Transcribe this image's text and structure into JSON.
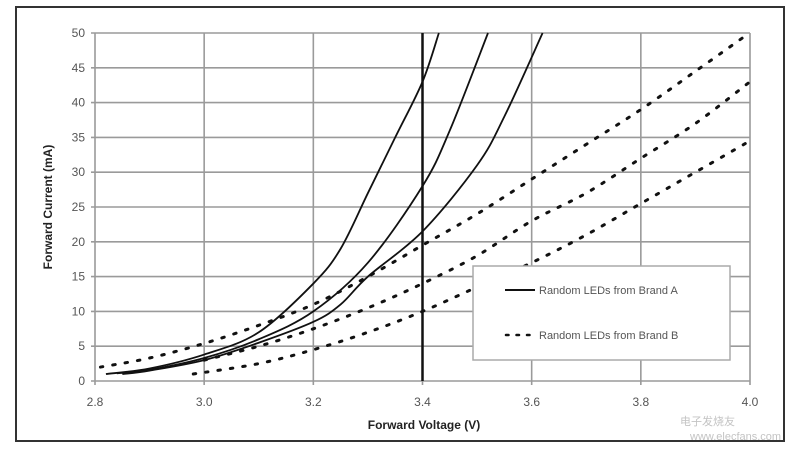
{
  "chart_data": {
    "type": "line",
    "title": "",
    "xlabel": "Forward Voltage (V)",
    "ylabel": "Forward Current (mA)",
    "xlim": [
      2.8,
      4.0
    ],
    "ylim": [
      0,
      50
    ],
    "xticks": [
      "2.8",
      "3.0",
      "3.2",
      "3.4",
      "3.6",
      "3.8",
      "4.0"
    ],
    "yticks": [
      "0",
      "5",
      "10",
      "15",
      "20",
      "25",
      "30",
      "35",
      "40",
      "45",
      "50"
    ],
    "grid": true,
    "legend_position": "bottom-right",
    "reference_line_x": 3.4,
    "legend": [
      "Random LEDs from Brand A",
      "Random LEDs from Brand B"
    ],
    "series": [
      {
        "name": "Random LEDs from Brand A",
        "style": "solid",
        "points": [
          [
            2.82,
            1
          ],
          [
            2.9,
            1.8
          ],
          [
            3.0,
            3.8
          ],
          [
            3.1,
            7
          ],
          [
            3.2,
            14
          ],
          [
            3.25,
            19
          ],
          [
            3.3,
            27
          ],
          [
            3.35,
            35
          ],
          [
            3.4,
            43
          ],
          [
            3.43,
            50
          ]
        ]
      },
      {
        "name": "Random LEDs from Brand A",
        "style": "solid",
        "points": [
          [
            2.84,
            1.1
          ],
          [
            2.9,
            1.6
          ],
          [
            3.0,
            3.3
          ],
          [
            3.1,
            6
          ],
          [
            3.2,
            10
          ],
          [
            3.3,
            17
          ],
          [
            3.4,
            28
          ],
          [
            3.45,
            36
          ],
          [
            3.52,
            50
          ]
        ]
      },
      {
        "name": "Random LEDs from Brand A",
        "style": "solid",
        "points": [
          [
            2.85,
            1
          ],
          [
            2.9,
            1.5
          ],
          [
            3.0,
            3
          ],
          [
            3.1,
            5.5
          ],
          [
            3.2,
            8.5
          ],
          [
            3.25,
            11
          ],
          [
            3.3,
            15
          ],
          [
            3.4,
            21.5
          ],
          [
            3.5,
            31
          ],
          [
            3.55,
            38
          ],
          [
            3.62,
            50
          ]
        ]
      },
      {
        "name": "Random LEDs from Brand B",
        "style": "dotted",
        "points": [
          [
            2.81,
            2
          ],
          [
            2.9,
            3.3
          ],
          [
            3.0,
            5.4
          ],
          [
            3.1,
            8
          ],
          [
            3.2,
            11
          ],
          [
            3.3,
            15
          ],
          [
            3.4,
            19.5
          ],
          [
            3.5,
            24
          ],
          [
            3.6,
            29
          ],
          [
            3.7,
            34
          ],
          [
            3.8,
            39
          ],
          [
            3.9,
            44.5
          ],
          [
            3.99,
            49.5
          ]
        ]
      },
      {
        "name": "Random LEDs from Brand B",
        "style": "dotted",
        "points": [
          [
            3.0,
            3
          ],
          [
            3.1,
            5
          ],
          [
            3.2,
            7.5
          ],
          [
            3.3,
            10.5
          ],
          [
            3.4,
            14
          ],
          [
            3.5,
            18
          ],
          [
            3.6,
            23
          ],
          [
            3.7,
            27
          ],
          [
            3.8,
            32
          ],
          [
            3.9,
            37
          ],
          [
            4.0,
            43
          ]
        ]
      },
      {
        "name": "Random LEDs from Brand B",
        "style": "dotted",
        "points": [
          [
            2.98,
            1
          ],
          [
            3.1,
            2.5
          ],
          [
            3.2,
            4.5
          ],
          [
            3.3,
            7
          ],
          [
            3.4,
            10
          ],
          [
            3.5,
            13.5
          ],
          [
            3.6,
            17
          ],
          [
            3.7,
            21
          ],
          [
            3.8,
            25.5
          ],
          [
            3.9,
            30
          ],
          [
            4.0,
            34.5
          ]
        ]
      }
    ]
  },
  "watermark": {
    "text": "电子发烧友",
    "url_text": "www.elecfans.com"
  },
  "colors": {
    "line": "#111111",
    "grid": "#9a9a9a"
  }
}
